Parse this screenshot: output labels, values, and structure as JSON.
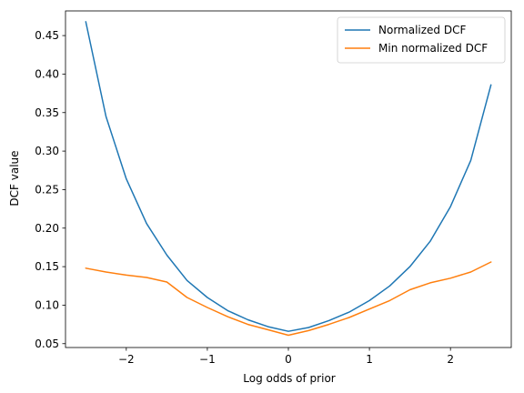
{
  "chart_data": {
    "type": "line",
    "title": "",
    "xlabel": "Log odds of prior",
    "ylabel": "DCF value",
    "xlim": [
      -2.75,
      2.75
    ],
    "ylim": [
      0.045,
      0.482
    ],
    "xticks": [
      -2,
      -1,
      0,
      1,
      2
    ],
    "yticks": [
      0.05,
      0.1,
      0.15,
      0.2,
      0.25,
      0.3,
      0.35,
      0.4,
      0.45
    ],
    "grid": false,
    "legend_position": "top-right",
    "x": [
      -2.5,
      -2.25,
      -2.0,
      -1.75,
      -1.5,
      -1.25,
      -1.0,
      -0.75,
      -0.5,
      -0.25,
      0.0,
      0.25,
      0.5,
      0.75,
      1.0,
      1.25,
      1.5,
      1.75,
      2.0,
      2.25,
      2.5
    ],
    "series": [
      {
        "name": "Normalized DCF",
        "color": "#1f77b4",
        "values": [
          0.468,
          0.345,
          0.264,
          0.206,
          0.165,
          0.132,
          0.11,
          0.093,
          0.081,
          0.072,
          0.066,
          0.071,
          0.08,
          0.091,
          0.106,
          0.125,
          0.15,
          0.183,
          0.228,
          0.288,
          0.386
        ]
      },
      {
        "name": "Min normalized DCF",
        "color": "#ff7f0e",
        "values": [
          0.148,
          0.143,
          0.139,
          0.136,
          0.13,
          0.11,
          0.097,
          0.085,
          0.075,
          0.068,
          0.061,
          0.067,
          0.075,
          0.084,
          0.095,
          0.106,
          0.12,
          0.129,
          0.135,
          0.143,
          0.156
        ]
      }
    ]
  }
}
